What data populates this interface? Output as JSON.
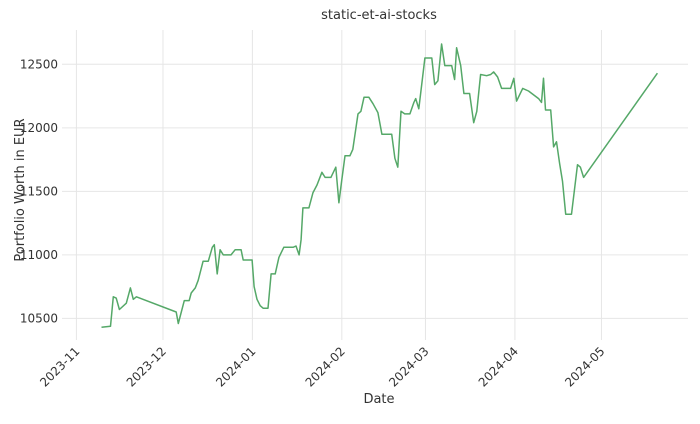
{
  "chart_data": {
    "type": "line",
    "title": "static-et-ai-stocks",
    "x_label": "Date",
    "y_label": "Portfolio Worth in EUR",
    "color": "#55a868",
    "grid": true,
    "xlim": [
      -5,
      212
    ],
    "xticks": [
      {
        "value": 0,
        "label": "2023-11"
      },
      {
        "value": 30,
        "label": "2023-12"
      },
      {
        "value": 61,
        "label": "2024-01"
      },
      {
        "value": 92,
        "label": "2024-02"
      },
      {
        "value": 121,
        "label": "2024-03"
      },
      {
        "value": 152,
        "label": "2024-04"
      },
      {
        "value": 182,
        "label": "2024-05"
      }
    ],
    "ylim": [
      10330,
      12770
    ],
    "yticks": [
      10500,
      11000,
      11500,
      12000,
      12500
    ],
    "x": [
      8.7,
      11.8,
      12.8,
      13.8,
      14.9,
      17.3,
      18.7,
      19.7,
      20.8,
      34.6,
      35.3,
      37.4,
      39.1,
      39.8,
      41.2,
      42.2,
      43.9,
      45.7,
      47.1,
      47.8,
      48.8,
      49.8,
      50.9,
      53.6,
      55.0,
      57.1,
      57.8,
      60.9,
      61.6,
      62.6,
      63.7,
      64.7,
      66.4,
      67.5,
      68.9,
      70.2,
      71.9,
      75.1,
      76.1,
      77.2,
      77.9,
      78.5,
      80.6,
      82.0,
      83.4,
      85.1,
      86.2,
      88.2,
      89.9,
      91.0,
      92.0,
      93.1,
      94.8,
      95.8,
      97.6,
      98.6,
      99.7,
      101.4,
      102.8,
      104.5,
      105.9,
      109.3,
      110.4,
      111.4,
      112.5,
      113.8,
      115.6,
      117.0,
      117.6,
      118.7,
      120.8,
      123.2,
      124.2,
      125.3,
      126.6,
      127.7,
      130.1,
      131.1,
      131.8,
      133.2,
      134.3,
      136.3,
      137.7,
      138.8,
      140.1,
      142.2,
      143.6,
      144.6,
      146.0,
      147.4,
      150.5,
      151.6,
      152.6,
      154.7,
      156.7,
      160.2,
      161.2,
      161.9,
      162.6,
      164.4,
      165.4,
      166.4,
      167.5,
      168.5,
      169.6,
      171.6,
      173.7,
      174.7,
      175.8,
      201.4
    ],
    "values": [
      10430,
      10438,
      10670,
      10660,
      10570,
      10620,
      10740,
      10650,
      10670,
      10550,
      10460,
      10640,
      10640,
      10700,
      10740,
      10800,
      10950,
      10950,
      11060,
      11080,
      10850,
      11040,
      11000,
      11000,
      11040,
      11040,
      10960,
      10960,
      10750,
      10650,
      10600,
      10580,
      10580,
      10850,
      10850,
      10980,
      11060,
      11060,
      11070,
      11000,
      11120,
      11370,
      11370,
      11490,
      11550,
      11650,
      11610,
      11610,
      11690,
      11410,
      11590,
      11780,
      11780,
      11830,
      12110,
      12130,
      12240,
      12240,
      12190,
      12120,
      11950,
      11950,
      11760,
      11690,
      12130,
      12110,
      12110,
      12200,
      12230,
      12150,
      12550,
      12550,
      12340,
      12370,
      12660,
      12490,
      12490,
      12380,
      12630,
      12490,
      12270,
      12270,
      12040,
      12130,
      12420,
      12410,
      12420,
      12440,
      12400,
      12310,
      12310,
      12390,
      12210,
      12310,
      12290,
      12230,
      12200,
      12390,
      12140,
      12140,
      11850,
      11890,
      11720,
      11580,
      11320,
      11320,
      11710,
      11690,
      11610,
      12430
    ]
  }
}
